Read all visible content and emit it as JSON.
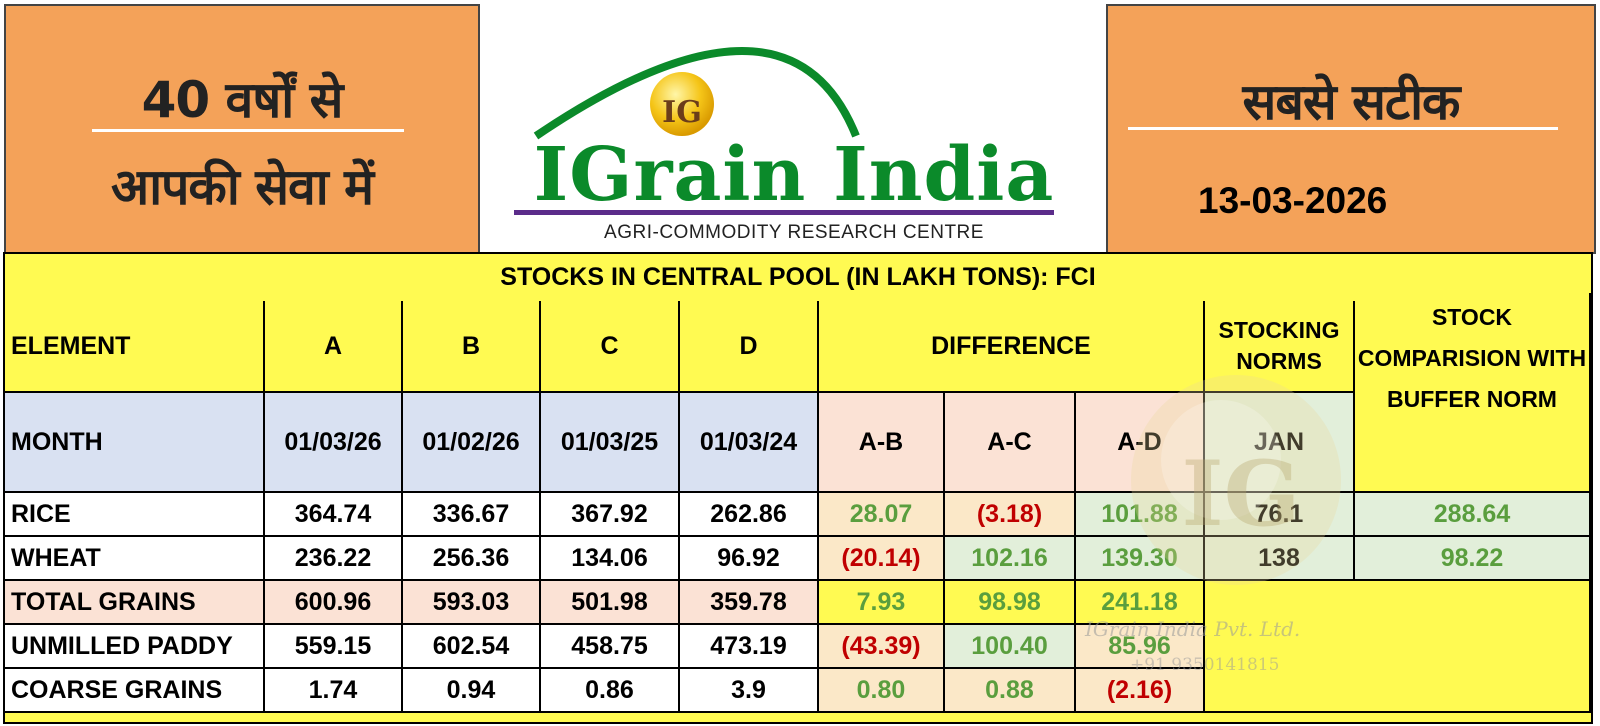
{
  "header": {
    "left_line1": "40 वर्षों से",
    "left_line2": "आपकी सेवा में",
    "right_title": "सबसे सटीक",
    "date": "13-03-2026",
    "logo_badge": "IG",
    "brand_name": "IGrain India",
    "tagline": "AGRI-COMMODITY RESEARCH CENTRE"
  },
  "colors": {
    "orange": "#f4a259",
    "table_yellow": "#fffa52",
    "brand_green": "#0b8a2a",
    "brand_purple": "#5b2c8a",
    "positive": "#5a9e3e",
    "negative": "#c00000"
  },
  "table": {
    "title": "STOCKS IN CENTRAL POOL (IN LAKH TONS): FCI",
    "header_row1": {
      "element": "ELEMENT",
      "a": "A",
      "b": "B",
      "c": "C",
      "d": "D",
      "difference": "DIFFERENCE",
      "stocking_norms": "STOCKING NORMS",
      "stock_comparison": "STOCK COMPARISION WITH BUFFER NORM"
    },
    "header_row2": {
      "month": "MONTH",
      "a": "01/03/26",
      "b": "01/02/26",
      "c": "01/03/25",
      "d": "01/03/24",
      "ab": "A-B",
      "ac": "A-C",
      "ad": "A-D",
      "norm": "JAN"
    },
    "rows": [
      {
        "name": "RICE",
        "a": "364.74",
        "b": "336.67",
        "c": "367.92",
        "d": "262.86",
        "ab": "28.07",
        "ac": "(3.18)",
        "ad": "101.88",
        "norm": "76.1",
        "cmp": "288.64"
      },
      {
        "name": "WHEAT",
        "a": "236.22",
        "b": "256.36",
        "c": "134.06",
        "d": "96.92",
        "ab": "(20.14)",
        "ac": "102.16",
        "ad": "139.30",
        "norm": "138",
        "cmp": "98.22"
      },
      {
        "name": "TOTAL GRAINS",
        "a": "600.96",
        "b": "593.03",
        "c": "501.98",
        "d": "359.78",
        "ab": "7.93",
        "ac": "98.98",
        "ad": "241.18"
      },
      {
        "name": "UNMILLED PADDY",
        "a": "559.15",
        "b": "602.54",
        "c": "458.75",
        "d": "473.19",
        "ab": "(43.39)",
        "ac": "100.40",
        "ad": "85.96"
      },
      {
        "name": "COARSE GRAINS",
        "a": "1.74",
        "b": "0.94",
        "c": "0.86",
        "d": "3.9",
        "ab": "0.80",
        "ac": "0.88",
        "ad": "(2.16)"
      }
    ]
  },
  "watermark": {
    "company": "IGrain India Pvt. Ltd.",
    "phone": "+91 9350141815"
  }
}
